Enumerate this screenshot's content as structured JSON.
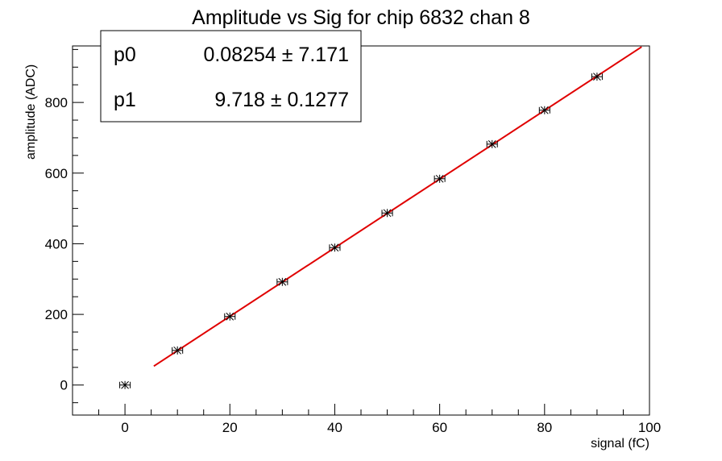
{
  "chart_data": {
    "type": "scatter",
    "title": "Amplitude vs Sig for chip 6832 chan 8",
    "xlabel": "signal (fC)",
    "ylabel": "amplitude (ADC)",
    "xlim": [
      -10,
      100
    ],
    "ylim": [
      -85,
      960
    ],
    "x_ticks": [
      0,
      20,
      40,
      60,
      80,
      100
    ],
    "x_tick_labels": [
      "0",
      "20",
      "40",
      "60",
      "80",
      "100"
    ],
    "y_ticks": [
      0,
      200,
      400,
      600,
      800
    ],
    "y_tick_labels": [
      "0",
      "200",
      "400",
      "600",
      "800"
    ],
    "grid": false,
    "marker": "star",
    "x_error": 1.0,
    "series": [
      {
        "points": [
          {
            "x": 0,
            "y": 0
          },
          {
            "x": 10,
            "y": 98
          },
          {
            "x": 20,
            "y": 194
          },
          {
            "x": 30,
            "y": 292
          },
          {
            "x": 40,
            "y": 389
          },
          {
            "x": 50,
            "y": 487
          },
          {
            "x": 60,
            "y": 584
          },
          {
            "x": 70,
            "y": 682
          },
          {
            "x": 80,
            "y": 778
          },
          {
            "x": 90,
            "y": 873
          }
        ]
      }
    ],
    "fit": {
      "color": "#e00000",
      "p0": 0.08254,
      "p1": 9.718,
      "x_range": [
        5.5,
        98.5
      ]
    },
    "stats_box": {
      "placement": "top-left",
      "rows": [
        {
          "name": "p0",
          "value": "0.08254 ± 7.171"
        },
        {
          "name": "p1",
          "value": "9.718 ± 0.1277"
        }
      ]
    }
  }
}
